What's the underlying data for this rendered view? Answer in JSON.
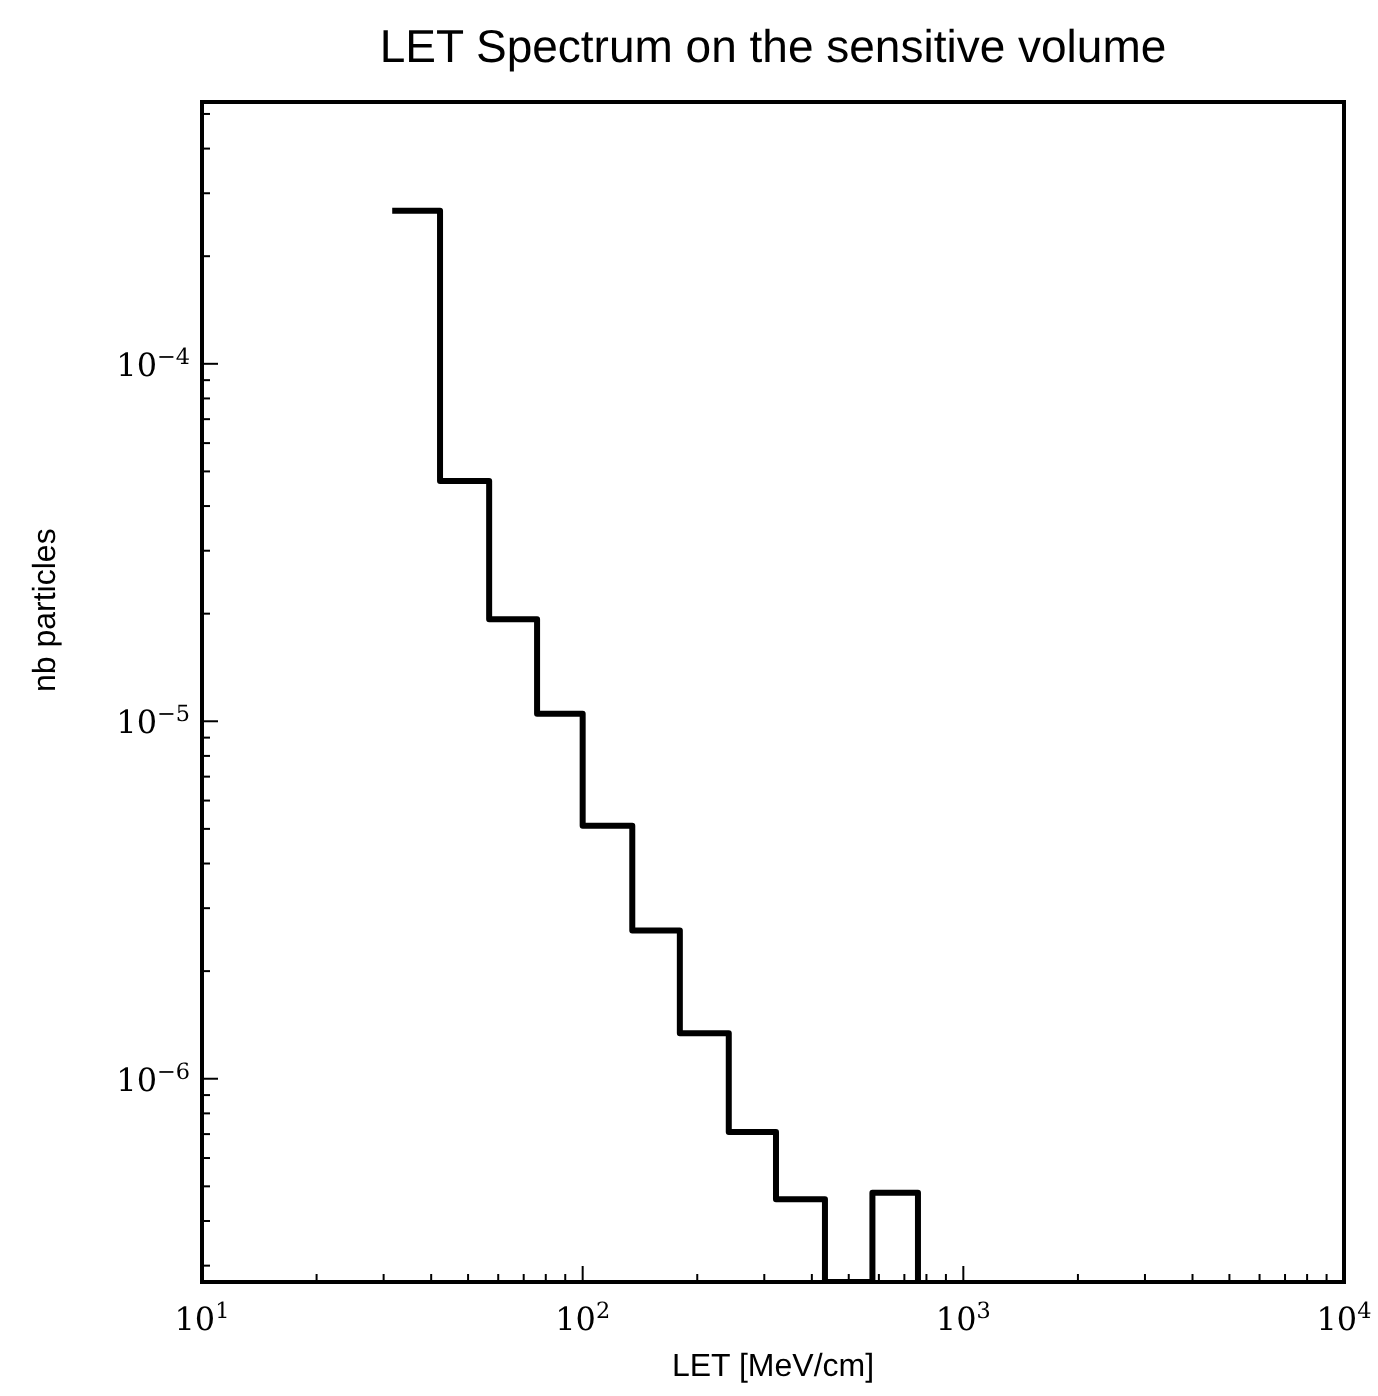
{
  "chart_data": {
    "type": "histogram",
    "title": "LET Spectrum on the sensitive volume",
    "xlabel": "LET [MeV/cm]",
    "ylabel": "nb particles",
    "log": "xy",
    "grid": false,
    "line_style": "solid",
    "color": "#000000",
    "bins": [
      31.6,
      42.2,
      56.8,
      75.9,
      100,
      135,
      180,
      242,
      322,
      433,
      577,
      760
    ],
    "values": [
      0.000268,
      4.7e-05,
      1.93e-05,
      1.05e-05,
      5.1e-06,
      2.6e-06,
      1.34e-06,
      7.1e-07,
      4.6e-07,
      null,
      4.8e-07
    ],
    "xlim": [
      10,
      10000
    ],
    "ylim": [
      2.7e-07,
      0.00054
    ],
    "xticks": [
      {
        "value": 10,
        "label": "10$^{1}$"
      },
      {
        "value": 20,
        "label": null
      },
      {
        "value": 30,
        "label": null
      },
      {
        "value": 40,
        "label": null
      },
      {
        "value": 50,
        "label": null
      },
      {
        "value": 60,
        "label": null
      },
      {
        "value": 70,
        "label": null
      },
      {
        "value": 80,
        "label": null
      },
      {
        "value": 90,
        "label": null
      },
      {
        "value": 100,
        "label": "10$^{2}$"
      },
      {
        "value": 200,
        "label": null
      },
      {
        "value": 300,
        "label": null
      },
      {
        "value": 400,
        "label": null
      },
      {
        "value": 500,
        "label": null
      },
      {
        "value": 600,
        "label": null
      },
      {
        "value": 700,
        "label": null
      },
      {
        "value": 800,
        "label": null
      },
      {
        "value": 900,
        "label": null
      },
      {
        "value": 1000,
        "label": "10$^{3}$"
      },
      {
        "value": 2000,
        "label": null
      },
      {
        "value": 3000,
        "label": null
      },
      {
        "value": 4000,
        "label": null
      },
      {
        "value": 5000,
        "label": null
      },
      {
        "value": 6000,
        "label": null
      },
      {
        "value": 7000,
        "label": null
      },
      {
        "value": 8000,
        "label": null
      },
      {
        "value": 9000,
        "label": null
      },
      {
        "value": 10000,
        "label": "10$^{4}$"
      }
    ],
    "yticks": [
      {
        "value": 3e-07,
        "label": null
      },
      {
        "value": 4e-07,
        "label": null
      },
      {
        "value": 5e-07,
        "label": null
      },
      {
        "value": 6e-07,
        "label": null
      },
      {
        "value": 7e-07,
        "label": null
      },
      {
        "value": 8e-07,
        "label": null
      },
      {
        "value": 9e-07,
        "label": null
      },
      {
        "value": 1e-06,
        "label": "10$^{−6}$"
      },
      {
        "value": 2e-06,
        "label": null
      },
      {
        "value": 3e-06,
        "label": null
      },
      {
        "value": 4e-06,
        "label": null
      },
      {
        "value": 5e-06,
        "label": null
      },
      {
        "value": 6e-06,
        "label": null
      },
      {
        "value": 7e-06,
        "label": null
      },
      {
        "value": 8e-06,
        "label": null
      },
      {
        "value": 9e-06,
        "label": null
      },
      {
        "value": 1e-05,
        "label": "10$^{−5}$"
      },
      {
        "value": 2e-05,
        "label": null
      },
      {
        "value": 3e-05,
        "label": null
      },
      {
        "value": 4e-05,
        "label": null
      },
      {
        "value": 5e-05,
        "label": null
      },
      {
        "value": 6e-05,
        "label": null
      },
      {
        "value": 7e-05,
        "label": null
      },
      {
        "value": 8e-05,
        "label": null
      },
      {
        "value": 9e-05,
        "label": null
      },
      {
        "value": 0.0001,
        "label": "10$^{−4}$"
      },
      {
        "value": 0.0002,
        "label": null
      },
      {
        "value": 0.0003,
        "label": null
      },
      {
        "value": 0.0004,
        "label": null
      },
      {
        "value": 0.0005,
        "label": null
      }
    ]
  }
}
